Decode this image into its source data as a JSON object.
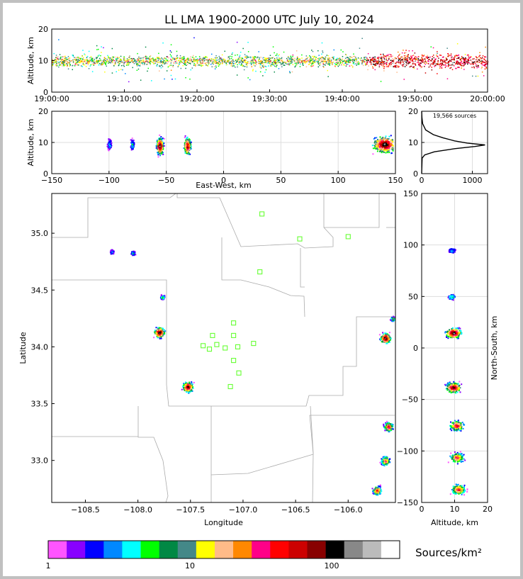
{
  "title": "LL LMA 1900-2000 UTC July 10, 2024",
  "colors": {
    "axis": "#000000",
    "grid": "#dddddd",
    "border": "#aaaaaa",
    "station": "#66ff33"
  },
  "colorbar": {
    "label": "Sources/km²",
    "ticks": [
      {
        "text": "1",
        "value": 1
      },
      {
        "text": "10",
        "value": 10
      },
      {
        "text": "100",
        "value": 100
      }
    ],
    "colors": [
      "#ff55ff",
      "#8800ff",
      "#0000ff",
      "#0088ff",
      "#00ffff",
      "#00ff00",
      "#008844",
      "#448888",
      "#ffff00",
      "#ffbb88",
      "#ff8800",
      "#ff0088",
      "#ff0000",
      "#cc0000",
      "#880000",
      "#000000",
      "#888888",
      "#bbbbbb",
      "#ffffff"
    ]
  },
  "chart_data": [
    {
      "id": "time-height",
      "type": "scatter",
      "ylabel": "Altitude, km",
      "xlabel": "",
      "xticks": [
        "19:00:00",
        "19:10:00",
        "19:20:00",
        "19:30:00",
        "19:40:00",
        "19:50:00",
        "20:00:00"
      ],
      "xlim": [
        "19:00:00",
        "20:00:00"
      ],
      "yticks": [
        "0",
        "10",
        "20"
      ],
      "ylim": [
        0,
        20
      ],
      "note_series": "source altitude vs time, densest 8-12 km, thickening after 19:45"
    },
    {
      "id": "ew-height",
      "type": "heatmap",
      "xlabel": "East-West, km",
      "ylabel": "Altitude, km",
      "xticks": [
        "−150",
        "−100",
        "−50",
        "0",
        "50",
        "100",
        "150"
      ],
      "xlim": [
        -150,
        150
      ],
      "yticks": [
        "0",
        "10",
        "20"
      ],
      "ylim": [
        0,
        20
      ],
      "clusters": [
        {
          "x": -100,
          "alt": 9.5,
          "intensity": 0.2
        },
        {
          "x": -80,
          "alt": 9.5,
          "intensity": 0.25
        },
        {
          "x": -56,
          "alt": 9,
          "intensity": 1.0
        },
        {
          "x": -32,
          "alt": 9,
          "intensity": 0.9
        },
        {
          "x": 140,
          "alt": 9.5,
          "intensity": 1.0
        }
      ]
    },
    {
      "id": "altitude-histogram",
      "type": "line",
      "annotation": "19,566 sources",
      "xticks": [
        "0",
        "1000"
      ],
      "xlim": [
        0,
        1300
      ],
      "yticks": [
        "0",
        "10",
        "20"
      ],
      "ylim": [
        0,
        20
      ],
      "profile": [
        {
          "alt": 0,
          "count": 0
        },
        {
          "alt": 3,
          "count": 5
        },
        {
          "alt": 5,
          "count": 10
        },
        {
          "alt": 6,
          "count": 60
        },
        {
          "alt": 7,
          "count": 250
        },
        {
          "alt": 8,
          "count": 650
        },
        {
          "alt": 8.7,
          "count": 1050
        },
        {
          "alt": 9.2,
          "count": 1250
        },
        {
          "alt": 9.8,
          "count": 900
        },
        {
          "alt": 10.5,
          "count": 650
        },
        {
          "alt": 11.5,
          "count": 420
        },
        {
          "alt": 12.5,
          "count": 230
        },
        {
          "alt": 14,
          "count": 80
        },
        {
          "alt": 16,
          "count": 20
        },
        {
          "alt": 18,
          "count": 5
        },
        {
          "alt": 20,
          "count": 0
        }
      ]
    },
    {
      "id": "plan-view",
      "type": "heatmap",
      "xlabel": "Longitude",
      "ylabel": "Latitude",
      "xticks": [
        "−108.5",
        "−108.0",
        "−107.5",
        "−107.0",
        "−106.5",
        "−106.0"
      ],
      "xlim": [
        -108.82,
        -105.55
      ],
      "yticks": [
        "33.0",
        "33.5",
        "34.0",
        "34.5",
        "35.0"
      ],
      "ylim": [
        32.63,
        35.35
      ],
      "clusters": [
        {
          "lon": -108.25,
          "lat": 34.84,
          "intensity": 0.2
        },
        {
          "lon": -108.05,
          "lat": 34.83,
          "intensity": 0.25
        },
        {
          "lon": -107.77,
          "lat": 34.44,
          "intensity": 0.35
        },
        {
          "lon": -107.8,
          "lat": 34.13,
          "intensity": 1.0
        },
        {
          "lon": -107.53,
          "lat": 33.65,
          "intensity": 0.95
        },
        {
          "lon": -105.65,
          "lat": 34.08,
          "intensity": 1.0
        },
        {
          "lon": -105.62,
          "lat": 33.3,
          "intensity": 0.8
        },
        {
          "lon": -105.65,
          "lat": 33.0,
          "intensity": 0.7
        },
        {
          "lon": -105.73,
          "lat": 32.74,
          "intensity": 0.75
        },
        {
          "lon": -105.58,
          "lat": 34.25,
          "intensity": 0.5
        }
      ],
      "stations": [
        {
          "lon": -106.82,
          "lat": 35.17
        },
        {
          "lon": -106.46,
          "lat": 34.95
        },
        {
          "lon": -106.0,
          "lat": 34.97
        },
        {
          "lon": -106.84,
          "lat": 34.66
        },
        {
          "lon": -107.09,
          "lat": 34.21
        },
        {
          "lon": -107.29,
          "lat": 34.1
        },
        {
          "lon": -107.09,
          "lat": 34.1
        },
        {
          "lon": -107.38,
          "lat": 34.01
        },
        {
          "lon": -107.25,
          "lat": 34.02
        },
        {
          "lon": -107.32,
          "lat": 33.98
        },
        {
          "lon": -107.17,
          "lat": 33.99
        },
        {
          "lon": -107.05,
          "lat": 34.0
        },
        {
          "lon": -106.9,
          "lat": 34.03
        },
        {
          "lon": -107.09,
          "lat": 33.88
        },
        {
          "lon": -107.04,
          "lat": 33.77
        },
        {
          "lon": -107.12,
          "lat": 33.65
        }
      ]
    },
    {
      "id": "ns-height",
      "type": "heatmap",
      "xlabel": "Altitude, km",
      "ylabel": "North-South, km",
      "xticks": [
        "0",
        "10",
        "20"
      ],
      "xlim": [
        0,
        20
      ],
      "yticks": [
        "150",
        "100",
        "50",
        "0",
        "−50",
        "−100",
        "−150"
      ],
      "ylim": [
        -150,
        150
      ],
      "clusters": [
        {
          "y": 95,
          "alt": 9,
          "intensity": 0.25
        },
        {
          "y": 50,
          "alt": 9,
          "intensity": 0.35
        },
        {
          "y": 15,
          "alt": 9.5,
          "intensity": 1.0
        },
        {
          "y": -38,
          "alt": 9.5,
          "intensity": 0.95
        },
        {
          "y": -75,
          "alt": 10.5,
          "intensity": 0.8
        },
        {
          "y": -106,
          "alt": 10.5,
          "intensity": 0.7
        },
        {
          "y": -137,
          "alt": 11,
          "intensity": 0.75
        }
      ]
    }
  ]
}
